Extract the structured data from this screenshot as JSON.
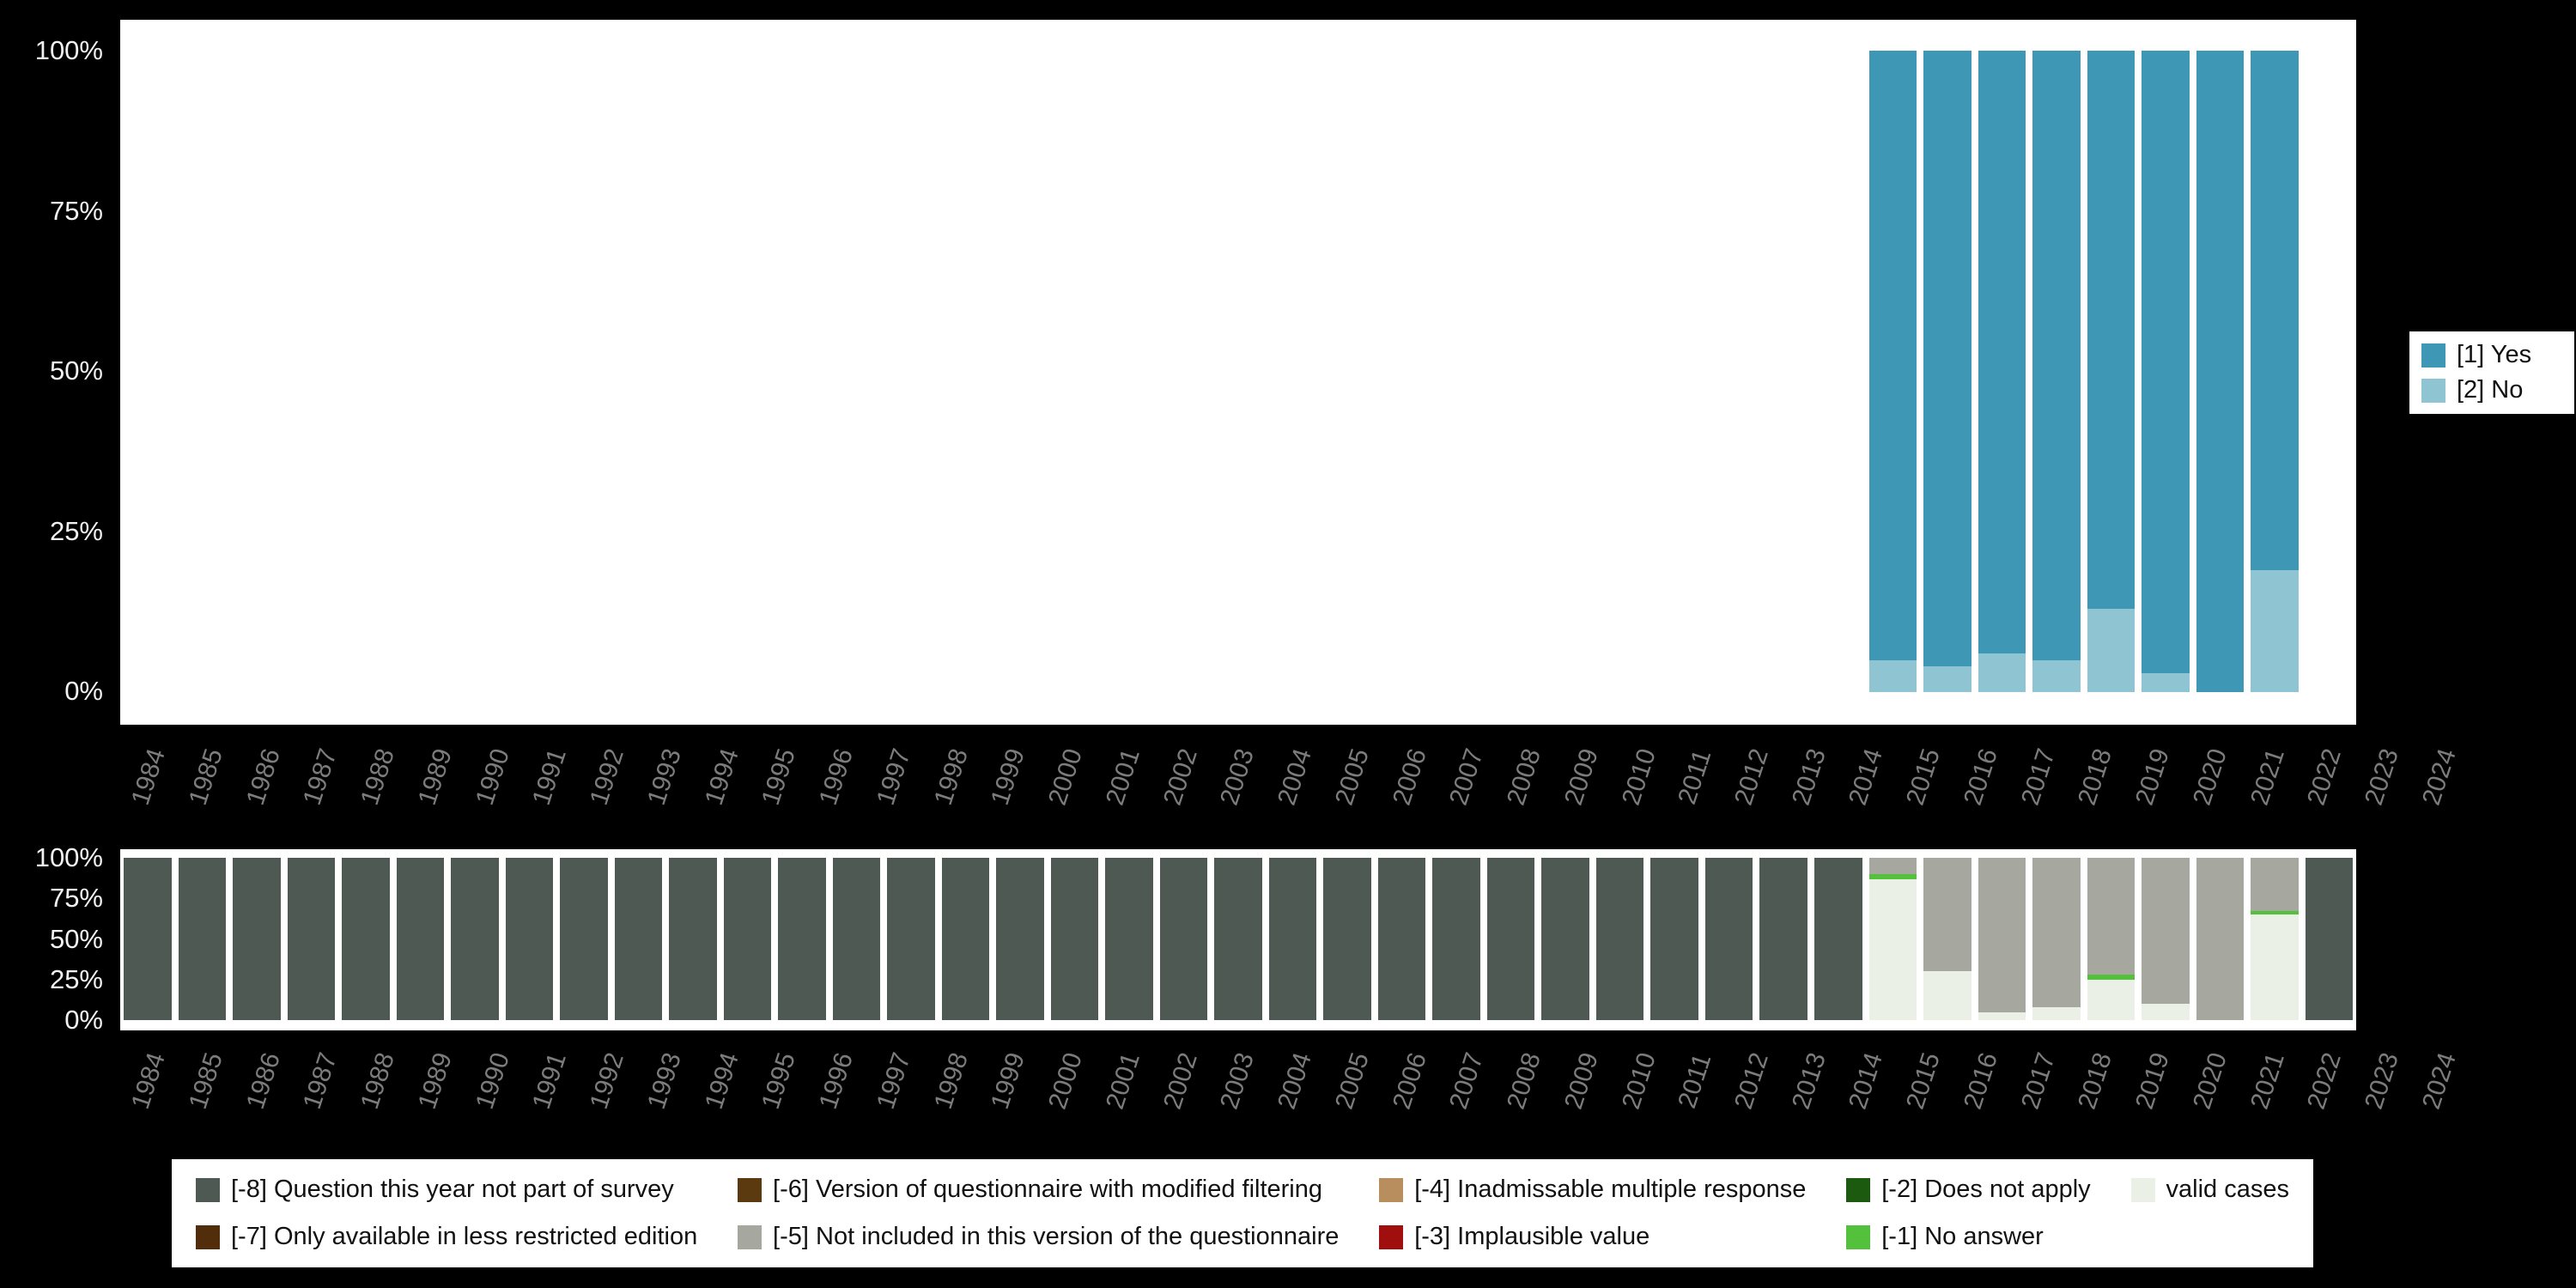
{
  "chart_data": [
    {
      "name": "answers-by-year",
      "type": "bar",
      "stacked": true,
      "title": "",
      "xlabel": "",
      "ylabel": "",
      "ylim": [
        0,
        100
      ],
      "grid": false,
      "yticks": [
        "100%",
        "75%",
        "50%",
        "25%",
        "0%"
      ],
      "categories": [
        "1984",
        "1985",
        "1986",
        "1987",
        "1988",
        "1989",
        "1990",
        "1991",
        "1992",
        "1993",
        "1994",
        "1995",
        "1996",
        "1997",
        "1998",
        "1999",
        "2000",
        "2001",
        "2002",
        "2003",
        "2004",
        "2005",
        "2006",
        "2007",
        "2008",
        "2009",
        "2010",
        "2011",
        "2012",
        "2013",
        "2014",
        "2015",
        "2016",
        "2017",
        "2018",
        "2019",
        "2020",
        "2021",
        "2022",
        "2023",
        "2024"
      ],
      "series": [
        {
          "name": "[1] Yes",
          "color": "#3d97b5",
          "values": {
            "2016": 95,
            "2017": 96,
            "2018": 94,
            "2019": 95,
            "2020": 87,
            "2021": 97,
            "2022": 100,
            "2023": 81
          }
        },
        {
          "name": "[2] No",
          "color": "#8fc4d3",
          "values": {
            "2016": 5,
            "2017": 4,
            "2018": 6,
            "2019": 5,
            "2020": 13,
            "2021": 3,
            "2022": 0,
            "2023": 19
          }
        }
      ]
    },
    {
      "name": "missing-codes-by-year",
      "type": "bar",
      "stacked": true,
      "title": "",
      "xlabel": "",
      "ylabel": "",
      "ylim": [
        0,
        100
      ],
      "grid": false,
      "yticks": [
        "100%",
        "75%",
        "50%",
        "25%",
        "0%"
      ],
      "categories": [
        "1984",
        "1985",
        "1986",
        "1987",
        "1988",
        "1989",
        "1990",
        "1991",
        "1992",
        "1993",
        "1994",
        "1995",
        "1996",
        "1997",
        "1998",
        "1999",
        "2000",
        "2001",
        "2002",
        "2003",
        "2004",
        "2005",
        "2006",
        "2007",
        "2008",
        "2009",
        "2010",
        "2011",
        "2012",
        "2013",
        "2014",
        "2015",
        "2016",
        "2017",
        "2018",
        "2019",
        "2020",
        "2021",
        "2022",
        "2023",
        "2024"
      ],
      "series": [
        {
          "name": "[-8] Question this year not part of survey",
          "color": "#4f5954",
          "values": {
            "1984": 100,
            "1985": 100,
            "1986": 100,
            "1987": 100,
            "1988": 100,
            "1989": 100,
            "1990": 100,
            "1991": 100,
            "1992": 100,
            "1993": 100,
            "1994": 100,
            "1995": 100,
            "1996": 100,
            "1997": 100,
            "1998": 100,
            "1999": 100,
            "2000": 100,
            "2001": 100,
            "2002": 100,
            "2003": 100,
            "2004": 100,
            "2005": 100,
            "2006": 100,
            "2007": 100,
            "2008": 100,
            "2009": 100,
            "2010": 100,
            "2011": 100,
            "2012": 100,
            "2013": 100,
            "2014": 100,
            "2015": 100,
            "2024": 100
          }
        },
        {
          "name": "[-5] Not included in this version of the questionnaire",
          "color": "#a6a8a0",
          "values": {
            "2016": 10,
            "2017": 70,
            "2018": 95,
            "2019": 92,
            "2020": 72,
            "2021": 90,
            "2022": 100,
            "2023": 33
          }
        },
        {
          "name": "[-1] No answer",
          "color": "#54c13c",
          "values": {
            "2016": 3,
            "2020": 3,
            "2023": 2
          }
        },
        {
          "name": "valid cases",
          "color": "#eaf0e6",
          "values": {
            "2016": 87,
            "2017": 30,
            "2018": 5,
            "2019": 8,
            "2020": 25,
            "2021": 10,
            "2023": 65
          }
        }
      ]
    }
  ],
  "legends": {
    "top": {
      "items": [
        {
          "label": "[1] Yes",
          "color": "#3d97b5"
        },
        {
          "label": "[2] No",
          "color": "#8fc4d3"
        }
      ]
    },
    "bottom": {
      "items": [
        {
          "label": "[-8] Question this year not part of survey",
          "color": "#4f5954"
        },
        {
          "label": "[-7] Only available in less restricted edition",
          "color": "#512d0b"
        },
        {
          "label": "[-6] Version of questionnaire with modified filtering",
          "color": "#5c3a10"
        },
        {
          "label": "[-5] Not included in this version of the questionnaire",
          "color": "#a6a8a0"
        },
        {
          "label": "[-4] Inadmissable multiple response",
          "color": "#b98e5e"
        },
        {
          "label": "[-3] Implausible value",
          "color": "#a00e0e"
        },
        {
          "label": "[-2] Does not apply",
          "color": "#1c5a10"
        },
        {
          "label": "[-1] No answer",
          "color": "#54c13c"
        },
        {
          "label": "valid cases",
          "color": "#eaf0e6"
        }
      ]
    }
  },
  "colors": {
    "background": "#000000",
    "panel": "#ffffff",
    "y_tick_text": "#f2f2f2",
    "x_tick_text": "#7c7c7c",
    "legend_text": "#111111"
  }
}
